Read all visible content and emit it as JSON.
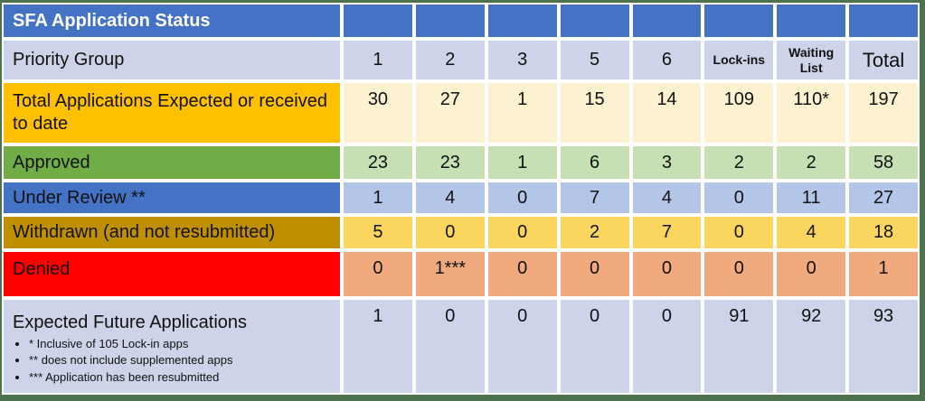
{
  "colors": {
    "header_blue": "#4472C4",
    "lavender_row": "#CDD3E8",
    "gold_label": "#FFC000",
    "cream_cells": "#FCF2D0",
    "green_label": "#70AD47",
    "light_green_cells": "#C6E0B4",
    "blue_label": "#4472C4",
    "light_blue_cells": "#B4C6E7",
    "dark_gold_label": "#BF8F00",
    "yellow_cells": "#FBD65E",
    "red_label": "#FF0000",
    "salmon_cells": "#F1AA7E",
    "frame_green": "#4C734E"
  },
  "chart_data": {
    "type": "table",
    "title": "SFA Application Status",
    "header": {
      "label": "Priority Group",
      "columns": [
        "1",
        "2",
        "3",
        "5",
        "6",
        "Lock-ins",
        "Waiting List",
        "Total"
      ]
    },
    "rows": [
      {
        "label": "Total Applications Expected or received to date",
        "values": [
          "30",
          "27",
          "1",
          "15",
          "14",
          "109",
          "110*",
          "197"
        ]
      },
      {
        "label": "Approved",
        "values": [
          "23",
          "23",
          "1",
          "6",
          "3",
          "2",
          "2",
          "58"
        ]
      },
      {
        "label": "Under Review **",
        "values": [
          "1",
          "4",
          "0",
          "7",
          "4",
          "0",
          "11",
          "27"
        ]
      },
      {
        "label": "Withdrawn (and not resubmitted)",
        "values": [
          "5",
          "0",
          "0",
          "2",
          "7",
          "0",
          "4",
          "18"
        ]
      },
      {
        "label": "Denied",
        "values": [
          "0",
          "1***",
          "0",
          "0",
          "0",
          "0",
          "0",
          "1"
        ]
      },
      {
        "label": "Expected Future Applications",
        "values": [
          "1",
          "0",
          "0",
          "0",
          "0",
          "91",
          "92",
          "93"
        ]
      }
    ],
    "footnotes": [
      "* Inclusive of 105 Lock-in apps",
      "** does not include supplemented apps",
      "*** Application has been resubmitted"
    ]
  }
}
